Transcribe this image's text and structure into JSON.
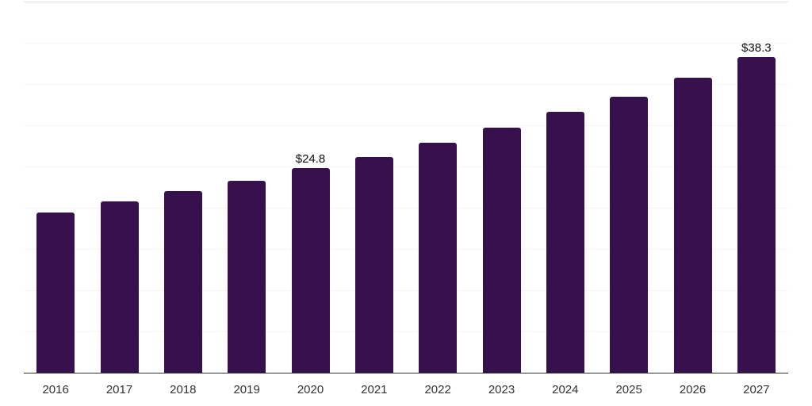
{
  "chart_data": {
    "type": "bar",
    "title": "",
    "xlabel": "",
    "ylabel": "",
    "categories": [
      "2016",
      "2017",
      "2018",
      "2019",
      "2020",
      "2021",
      "2022",
      "2023",
      "2024",
      "2025",
      "2026",
      "2027"
    ],
    "values": [
      19.4,
      20.8,
      22.0,
      23.3,
      24.8,
      26.2,
      27.9,
      29.7,
      31.6,
      33.5,
      35.8,
      38.3
    ],
    "data_labels": [
      {
        "category": "2020",
        "text": "$24.8"
      },
      {
        "category": "2027",
        "text": "$38.3"
      }
    ],
    "ylim": [
      0,
      45
    ],
    "gridline_step": 5,
    "grid": "horizontal-only",
    "legend": "none",
    "y_tick_labels_visible": false,
    "colors": {
      "bar": "#36114e",
      "background": "#ffffff",
      "gridline": "#f4f4f4",
      "gridline_top": "#e3e3e3",
      "axis_line": "#333333",
      "tick_label": "#333333",
      "value_label": "#0d0d0d"
    }
  }
}
